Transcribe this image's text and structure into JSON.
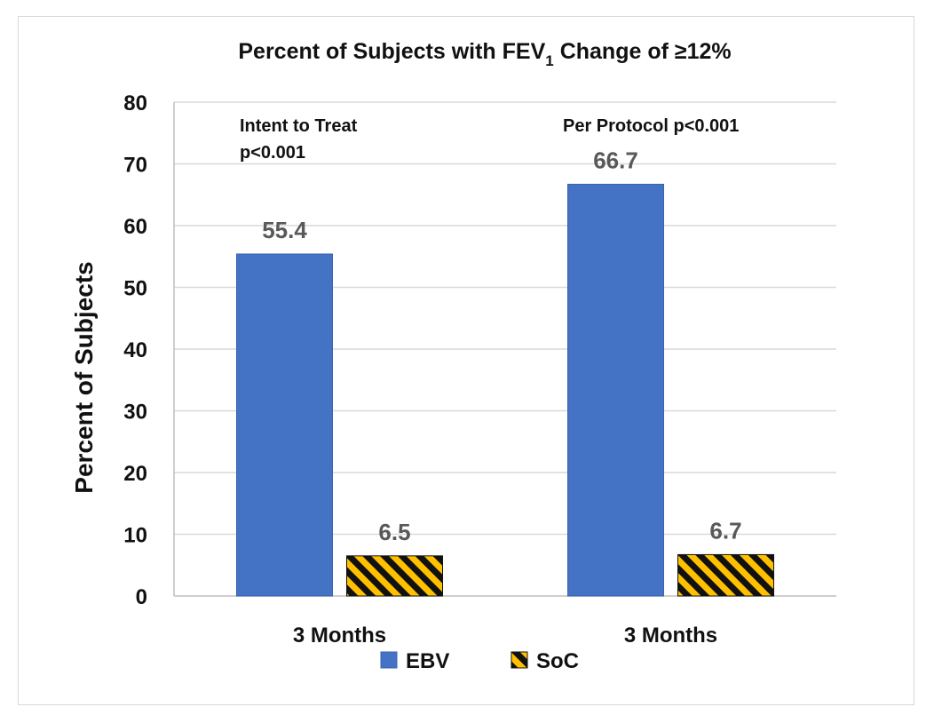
{
  "chart_data": {
    "type": "bar",
    "title": "Percent of Subjects with FEV",
    "title_subscript": "1",
    "title_suffix": " Change of ≥12%",
    "ylabel": "Percent of Subjects",
    "xlabel": "",
    "ylim": [
      0,
      80
    ],
    "yticks": [
      0,
      10,
      20,
      30,
      40,
      50,
      60,
      70,
      80
    ],
    "grid": true,
    "legend_position": "bottom",
    "categories": [
      "3 Months",
      "3 Months"
    ],
    "series": [
      {
        "name": "EBV",
        "values": [
          55.4,
          66.7
        ],
        "labels": [
          "55.4",
          "66.7"
        ],
        "color": "#4472c4",
        "pattern": "solid"
      },
      {
        "name": "SoC",
        "values": [
          6.5,
          6.7
        ],
        "labels": [
          "6.5",
          "6.7"
        ],
        "color": "#ffc000",
        "pattern": "diagonal-stripe-black"
      }
    ],
    "annotations": [
      {
        "lines": [
          "Intent to Treat",
          "p<0.001"
        ]
      },
      {
        "lines": [
          "Per Protocol p<0.001"
        ]
      }
    ]
  }
}
